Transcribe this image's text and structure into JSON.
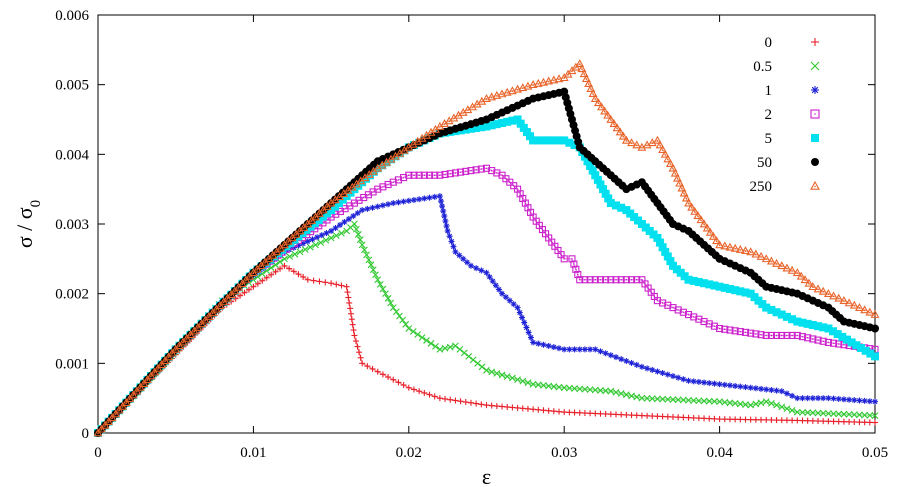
{
  "chart_data": {
    "type": "scatter",
    "xlabel": "ε",
    "ylabel_main": "σ / σ",
    "ylabel_sub": "0",
    "xlim": [
      0,
      0.05
    ],
    "ylim": [
      0,
      0.006
    ],
    "xticks": [
      0,
      0.01,
      0.02,
      0.03,
      0.04,
      0.05
    ],
    "xtick_labels": [
      "0",
      "0.01",
      "0.02",
      "0.03",
      "0.04",
      "0.05"
    ],
    "yticks": [
      0,
      0.001,
      0.002,
      0.003,
      0.004,
      0.005,
      0.006
    ],
    "ytick_labels": [
      "0",
      "0.001",
      "0.002",
      "0.003",
      "0.004",
      "0.005",
      "0.006"
    ],
    "grid": false,
    "legend_position": "top-right",
    "series": [
      {
        "name": "0",
        "marker": "plus",
        "color": "#e8202a",
        "points": [
          [
            0,
            0
          ],
          [
            0.002,
            0.00045
          ],
          [
            0.004,
            0.0009
          ],
          [
            0.006,
            0.00135
          ],
          [
            0.008,
            0.0018
          ],
          [
            0.01,
            0.0021
          ],
          [
            0.012,
            0.0024
          ],
          [
            0.0135,
            0.0022
          ],
          [
            0.015,
            0.00215
          ],
          [
            0.016,
            0.0021
          ],
          [
            0.0165,
            0.0014
          ],
          [
            0.017,
            0.001
          ],
          [
            0.018,
            0.00088
          ],
          [
            0.02,
            0.00065
          ],
          [
            0.022,
            0.0005
          ],
          [
            0.025,
            0.0004
          ],
          [
            0.03,
            0.0003
          ],
          [
            0.035,
            0.00025
          ],
          [
            0.04,
            0.0002
          ],
          [
            0.045,
            0.00018
          ],
          [
            0.05,
            0.00015
          ]
        ]
      },
      {
        "name": "0.5",
        "marker": "x",
        "color": "#2ec82e",
        "points": [
          [
            0,
            0
          ],
          [
            0.004,
            0.00095
          ],
          [
            0.008,
            0.0019
          ],
          [
            0.012,
            0.0025
          ],
          [
            0.014,
            0.0027
          ],
          [
            0.016,
            0.0029
          ],
          [
            0.0165,
            0.003
          ],
          [
            0.017,
            0.0027
          ],
          [
            0.018,
            0.0022
          ],
          [
            0.019,
            0.0018
          ],
          [
            0.02,
            0.0015
          ],
          [
            0.022,
            0.0012
          ],
          [
            0.023,
            0.00125
          ],
          [
            0.025,
            0.0009
          ],
          [
            0.028,
            0.0007
          ],
          [
            0.03,
            0.00065
          ],
          [
            0.033,
            0.0006
          ],
          [
            0.035,
            0.0005
          ],
          [
            0.04,
            0.00045
          ],
          [
            0.042,
            0.0004
          ],
          [
            0.043,
            0.00045
          ],
          [
            0.045,
            0.0003
          ],
          [
            0.05,
            0.00025
          ]
        ]
      },
      {
        "name": "1",
        "marker": "asterisk",
        "color": "#1e22d6",
        "points": [
          [
            0,
            0
          ],
          [
            0.004,
            0.00095
          ],
          [
            0.008,
            0.0019
          ],
          [
            0.012,
            0.0026
          ],
          [
            0.015,
            0.0029
          ],
          [
            0.017,
            0.0032
          ],
          [
            0.019,
            0.0033
          ],
          [
            0.022,
            0.0034
          ],
          [
            0.0225,
            0.0029
          ],
          [
            0.023,
            0.0026
          ],
          [
            0.024,
            0.0024
          ],
          [
            0.025,
            0.0023
          ],
          [
            0.026,
            0.002
          ],
          [
            0.027,
            0.0018
          ],
          [
            0.028,
            0.0013
          ],
          [
            0.03,
            0.0012
          ],
          [
            0.032,
            0.0012
          ],
          [
            0.035,
            0.00095
          ],
          [
            0.038,
            0.00075
          ],
          [
            0.04,
            0.0007
          ],
          [
            0.044,
            0.0006
          ],
          [
            0.045,
            0.0005
          ],
          [
            0.047,
            0.0005
          ],
          [
            0.05,
            0.00045
          ]
        ]
      },
      {
        "name": "2",
        "marker": "square-open",
        "color": "#cc22cc",
        "points": [
          [
            0,
            0
          ],
          [
            0.005,
            0.0012
          ],
          [
            0.01,
            0.0023
          ],
          [
            0.015,
            0.0031
          ],
          [
            0.018,
            0.0035
          ],
          [
            0.02,
            0.0037
          ],
          [
            0.022,
            0.0037
          ],
          [
            0.025,
            0.0038
          ],
          [
            0.026,
            0.0037
          ],
          [
            0.027,
            0.0035
          ],
          [
            0.028,
            0.0031
          ],
          [
            0.029,
            0.0028
          ],
          [
            0.03,
            0.0025
          ],
          [
            0.0305,
            0.0025
          ],
          [
            0.031,
            0.0022
          ],
          [
            0.033,
            0.0022
          ],
          [
            0.035,
            0.0022
          ],
          [
            0.036,
            0.0019
          ],
          [
            0.038,
            0.0017
          ],
          [
            0.04,
            0.0015
          ],
          [
            0.043,
            0.0014
          ],
          [
            0.045,
            0.0014
          ],
          [
            0.047,
            0.0013
          ],
          [
            0.05,
            0.0012
          ]
        ]
      },
      {
        "name": "5",
        "marker": "square-filled",
        "color": "#00e0ee",
        "points": [
          [
            0,
            0
          ],
          [
            0.005,
            0.0012
          ],
          [
            0.01,
            0.0023
          ],
          [
            0.015,
            0.0032
          ],
          [
            0.018,
            0.0038
          ],
          [
            0.02,
            0.0041
          ],
          [
            0.022,
            0.0043
          ],
          [
            0.025,
            0.0044
          ],
          [
            0.027,
            0.0045
          ],
          [
            0.028,
            0.0042
          ],
          [
            0.03,
            0.0042
          ],
          [
            0.031,
            0.0041
          ],
          [
            0.032,
            0.0037
          ],
          [
            0.033,
            0.0033
          ],
          [
            0.034,
            0.0032
          ],
          [
            0.036,
            0.0028
          ],
          [
            0.037,
            0.0024
          ],
          [
            0.038,
            0.0022
          ],
          [
            0.04,
            0.0021
          ],
          [
            0.042,
            0.002
          ],
          [
            0.043,
            0.0018
          ],
          [
            0.045,
            0.0016
          ],
          [
            0.047,
            0.0015
          ],
          [
            0.05,
            0.0011
          ]
        ]
      },
      {
        "name": "50",
        "marker": "circle-filled",
        "color": "#000000",
        "points": [
          [
            0,
            0
          ],
          [
            0.005,
            0.0012
          ],
          [
            0.01,
            0.0023
          ],
          [
            0.015,
            0.0033
          ],
          [
            0.018,
            0.0039
          ],
          [
            0.02,
            0.0041
          ],
          [
            0.022,
            0.0043
          ],
          [
            0.025,
            0.0045
          ],
          [
            0.027,
            0.0047
          ],
          [
            0.028,
            0.0048
          ],
          [
            0.03,
            0.0049
          ],
          [
            0.0305,
            0.0045
          ],
          [
            0.031,
            0.0041
          ],
          [
            0.032,
            0.0039
          ],
          [
            0.033,
            0.0037
          ],
          [
            0.034,
            0.0035
          ],
          [
            0.035,
            0.0036
          ],
          [
            0.036,
            0.0033
          ],
          [
            0.037,
            0.003
          ],
          [
            0.038,
            0.0029
          ],
          [
            0.04,
            0.0025
          ],
          [
            0.042,
            0.0023
          ],
          [
            0.043,
            0.0021
          ],
          [
            0.045,
            0.002
          ],
          [
            0.047,
            0.0018
          ],
          [
            0.048,
            0.0016
          ],
          [
            0.05,
            0.0015
          ]
        ]
      },
      {
        "name": "250",
        "marker": "triangle-open",
        "color": "#e8642a",
        "points": [
          [
            0,
            0
          ],
          [
            0.005,
            0.0012
          ],
          [
            0.01,
            0.0023
          ],
          [
            0.015,
            0.0033
          ],
          [
            0.018,
            0.0038
          ],
          [
            0.02,
            0.0041
          ],
          [
            0.022,
            0.0044
          ],
          [
            0.025,
            0.0048
          ],
          [
            0.028,
            0.005
          ],
          [
            0.03,
            0.0051
          ],
          [
            0.031,
            0.0053
          ],
          [
            0.032,
            0.0048
          ],
          [
            0.033,
            0.0045
          ],
          [
            0.034,
            0.0042
          ],
          [
            0.035,
            0.0041
          ],
          [
            0.036,
            0.0042
          ],
          [
            0.037,
            0.0038
          ],
          [
            0.038,
            0.0033
          ],
          [
            0.039,
            0.003
          ],
          [
            0.04,
            0.0027
          ],
          [
            0.042,
            0.0026
          ],
          [
            0.043,
            0.0025
          ],
          [
            0.045,
            0.0023
          ],
          [
            0.046,
            0.0021
          ],
          [
            0.047,
            0.002
          ],
          [
            0.048,
            0.0019
          ],
          [
            0.05,
            0.0017
          ]
        ]
      }
    ]
  }
}
